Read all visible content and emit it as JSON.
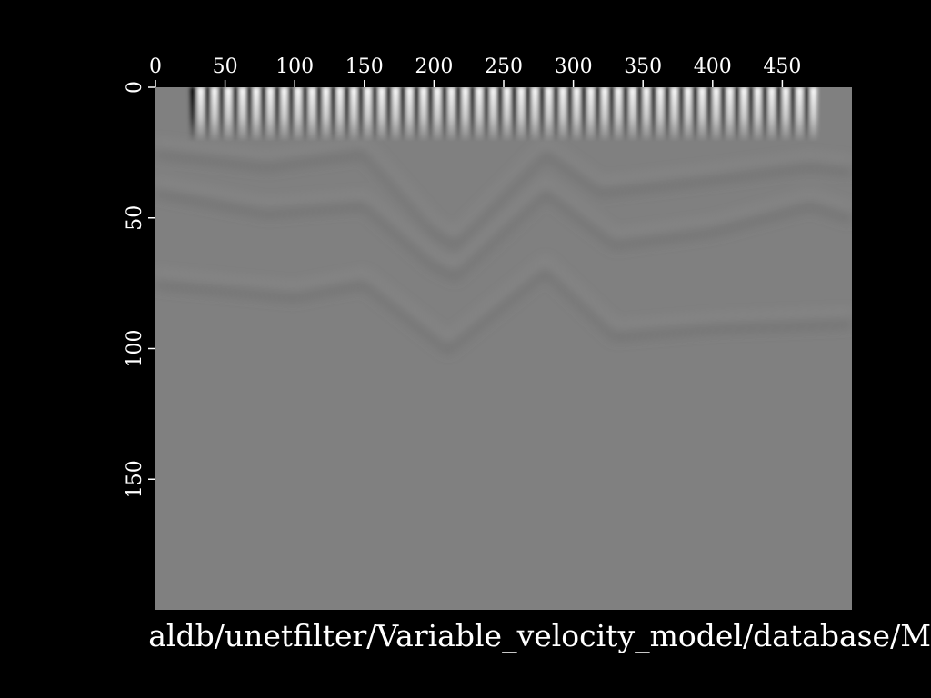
{
  "chart_data": {
    "type": "heatmap",
    "title": "",
    "xlabel": "",
    "ylabel": "",
    "x_axis_position": "top",
    "y_axis_direction": "down",
    "xlim": [
      0,
      500
    ],
    "ylim": [
      0,
      200
    ],
    "x_ticks": [
      0,
      50,
      100,
      150,
      200,
      250,
      300,
      350,
      400,
      450
    ],
    "y_ticks": [
      0,
      50,
      100,
      150
    ],
    "colormap": "grayscale",
    "background_value_color": "#808080",
    "description_of_field": {
      "surface_oscillation_x_range": [
        25,
        470
      ],
      "surface_oscillation_period": 10,
      "surface_oscillation_depth": 20,
      "event_curves": [
        {
          "points": [
            [
              0,
              25
            ],
            [
              80,
              30
            ],
            [
              150,
              25
            ],
            [
              200,
              55
            ],
            [
              215,
              60
            ],
            [
              280,
              25
            ],
            [
              320,
              40
            ],
            [
              400,
              35
            ],
            [
              470,
              30
            ],
            [
              500,
              32
            ]
          ]
        },
        {
          "points": [
            [
              0,
              40
            ],
            [
              80,
              48
            ],
            [
              150,
              45
            ],
            [
              200,
              68
            ],
            [
              215,
              72
            ],
            [
              280,
              40
            ],
            [
              330,
              60
            ],
            [
              400,
              55
            ],
            [
              470,
              45
            ],
            [
              500,
              50
            ]
          ]
        },
        {
          "points": [
            [
              0,
              75
            ],
            [
              100,
              80
            ],
            [
              150,
              75
            ],
            [
              210,
              100
            ],
            [
              280,
              70
            ],
            [
              330,
              95
            ],
            [
              400,
              92
            ],
            [
              500,
              90
            ]
          ]
        }
      ]
    }
  },
  "footer": {
    "path_text": "aldb/unetfilter/Variable_velocity_model/database/M"
  },
  "colors": {
    "background": "#000000",
    "axis_text": "#ffffff",
    "plot_fill": "#808080"
  }
}
